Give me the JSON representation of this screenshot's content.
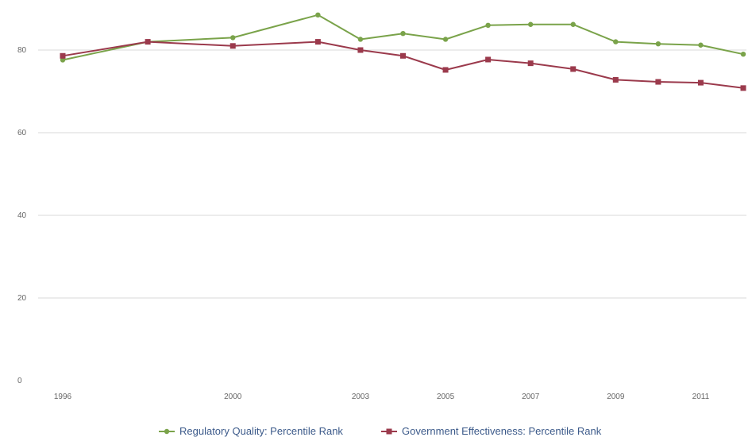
{
  "chart_data": {
    "type": "line",
    "title": "",
    "xlabel": "",
    "ylabel": "",
    "x": [
      1996,
      1998,
      2000,
      2002,
      2003,
      2004,
      2005,
      2006,
      2007,
      2008,
      2009,
      2010,
      2011,
      2012
    ],
    "x_ticks": [
      "1996",
      "2000",
      "2003",
      "2005",
      "2007",
      "2009",
      "2011"
    ],
    "y_ticks": [
      "0",
      "20",
      "40",
      "60",
      "80"
    ],
    "ylim": [
      0,
      90
    ],
    "grid": true,
    "legend_position": "bottom",
    "series": [
      {
        "name": "Regulatory Quality: Percentile Rank",
        "color": "#7aa34a",
        "marker": "circle",
        "values": [
          77.6,
          82.0,
          83.0,
          88.5,
          82.6,
          84.0,
          82.6,
          86.0,
          86.2,
          86.2,
          82.0,
          81.5,
          81.2,
          79.0
        ]
      },
      {
        "name": "Government Effectiveness: Percentile Rank",
        "color": "#9b3a4c",
        "marker": "square",
        "values": [
          78.6,
          82.0,
          81.0,
          82.0,
          80.0,
          78.6,
          75.2,
          77.7,
          76.8,
          75.4,
          72.8,
          72.3,
          72.1,
          70.8
        ]
      }
    ]
  }
}
